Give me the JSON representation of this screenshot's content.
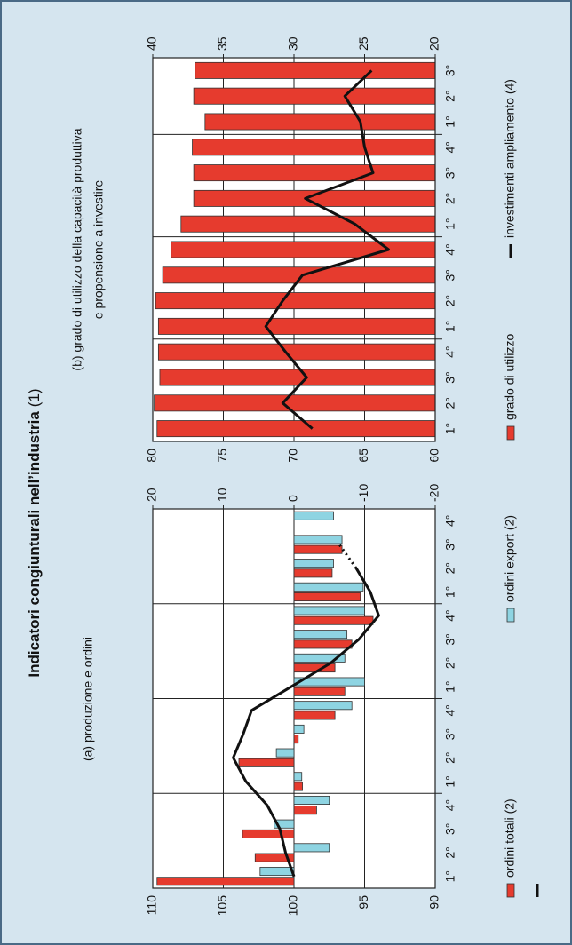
{
  "title": "Indicatori congiunturali nell’industria",
  "title_note": "(1)",
  "chart_data": [
    {
      "type": "bar",
      "title": [
        "(a) produzione e ordini"
      ],
      "categories": [
        "1°",
        "2°",
        "3°",
        "4°",
        "1°",
        "2°",
        "3°",
        "4°",
        "1°",
        "2°",
        "3°",
        "4°",
        "1°",
        "2°",
        "3°",
        "4°"
      ],
      "series": [
        {
          "name": "ordini totali (2)",
          "color": "#e63b2e",
          "axis": "y2",
          "values": [
            19.4,
            5.5,
            7.3,
            -3.2,
            -1.2,
            7.8,
            -0.6,
            -5.8,
            -7.2,
            -5.8,
            -8.2,
            -11.2,
            -9.4,
            -5.4,
            -6.8,
            null
          ]
        },
        {
          "name": "ordini export (2)",
          "color": "#8ed4e2",
          "axis": "y2",
          "values": [
            4.8,
            -5.0,
            2.8,
            -5.0,
            -1.1,
            2.5,
            -1.4,
            -8.2,
            -10.0,
            -7.2,
            -7.5,
            -10.0,
            -9.8,
            -5.6,
            -6.8,
            -5.6
          ]
        },
        {
          "type": "line",
          "color": "#111111",
          "dotted_from": 13,
          "values": [
            100,
            100.6,
            101.0,
            101.9,
            103.4,
            104.3,
            103.6,
            103.0,
            100.2,
            97.4,
            95.4,
            94.0,
            94.6,
            95.6,
            96.8,
            null
          ]
        }
      ],
      "ylim": [
        90,
        110
      ],
      "yticks": [
        90,
        95,
        100,
        105,
        110
      ],
      "y2lim": [
        -20,
        20
      ],
      "y2ticks": [
        -20,
        -10,
        0,
        10,
        20
      ],
      "grid": true
    },
    {
      "type": "bar",
      "title": [
        "(b) grado di utilizzo della capacità produttiva",
        "e propensione a investire"
      ],
      "categories": [
        "1°",
        "2°",
        "3°",
        "4°",
        "1°",
        "2°",
        "3°",
        "4°",
        "1°",
        "2°",
        "3°",
        "4°",
        "1°",
        "2°",
        "3°"
      ],
      "series": [
        {
          "name": "grado di utilizzo",
          "color": "#e63b2e",
          "values": [
            79.7,
            79.9,
            79.5,
            79.6,
            79.6,
            79.8,
            79.3,
            78.7,
            78.0,
            77.1,
            77.1,
            77.2,
            76.3,
            77.1,
            77.0
          ]
        },
        {
          "name": "investimenti ampliamento (4)",
          "type": "line",
          "color": "#111111",
          "axis": "y2",
          "values": [
            28.7,
            30.8,
            29.1,
            30.6,
            32.0,
            30.8,
            29.4,
            23.3,
            25.7,
            29.2,
            24.4,
            25.0,
            25.3,
            26.4,
            24.5
          ]
        }
      ],
      "ylim": [
        60,
        80
      ],
      "yticks": [
        60,
        65,
        70,
        75,
        80
      ],
      "y2lim": [
        20,
        40
      ],
      "y2ticks": [
        20,
        25,
        30,
        35,
        40
      ],
      "grid": true
    }
  ]
}
